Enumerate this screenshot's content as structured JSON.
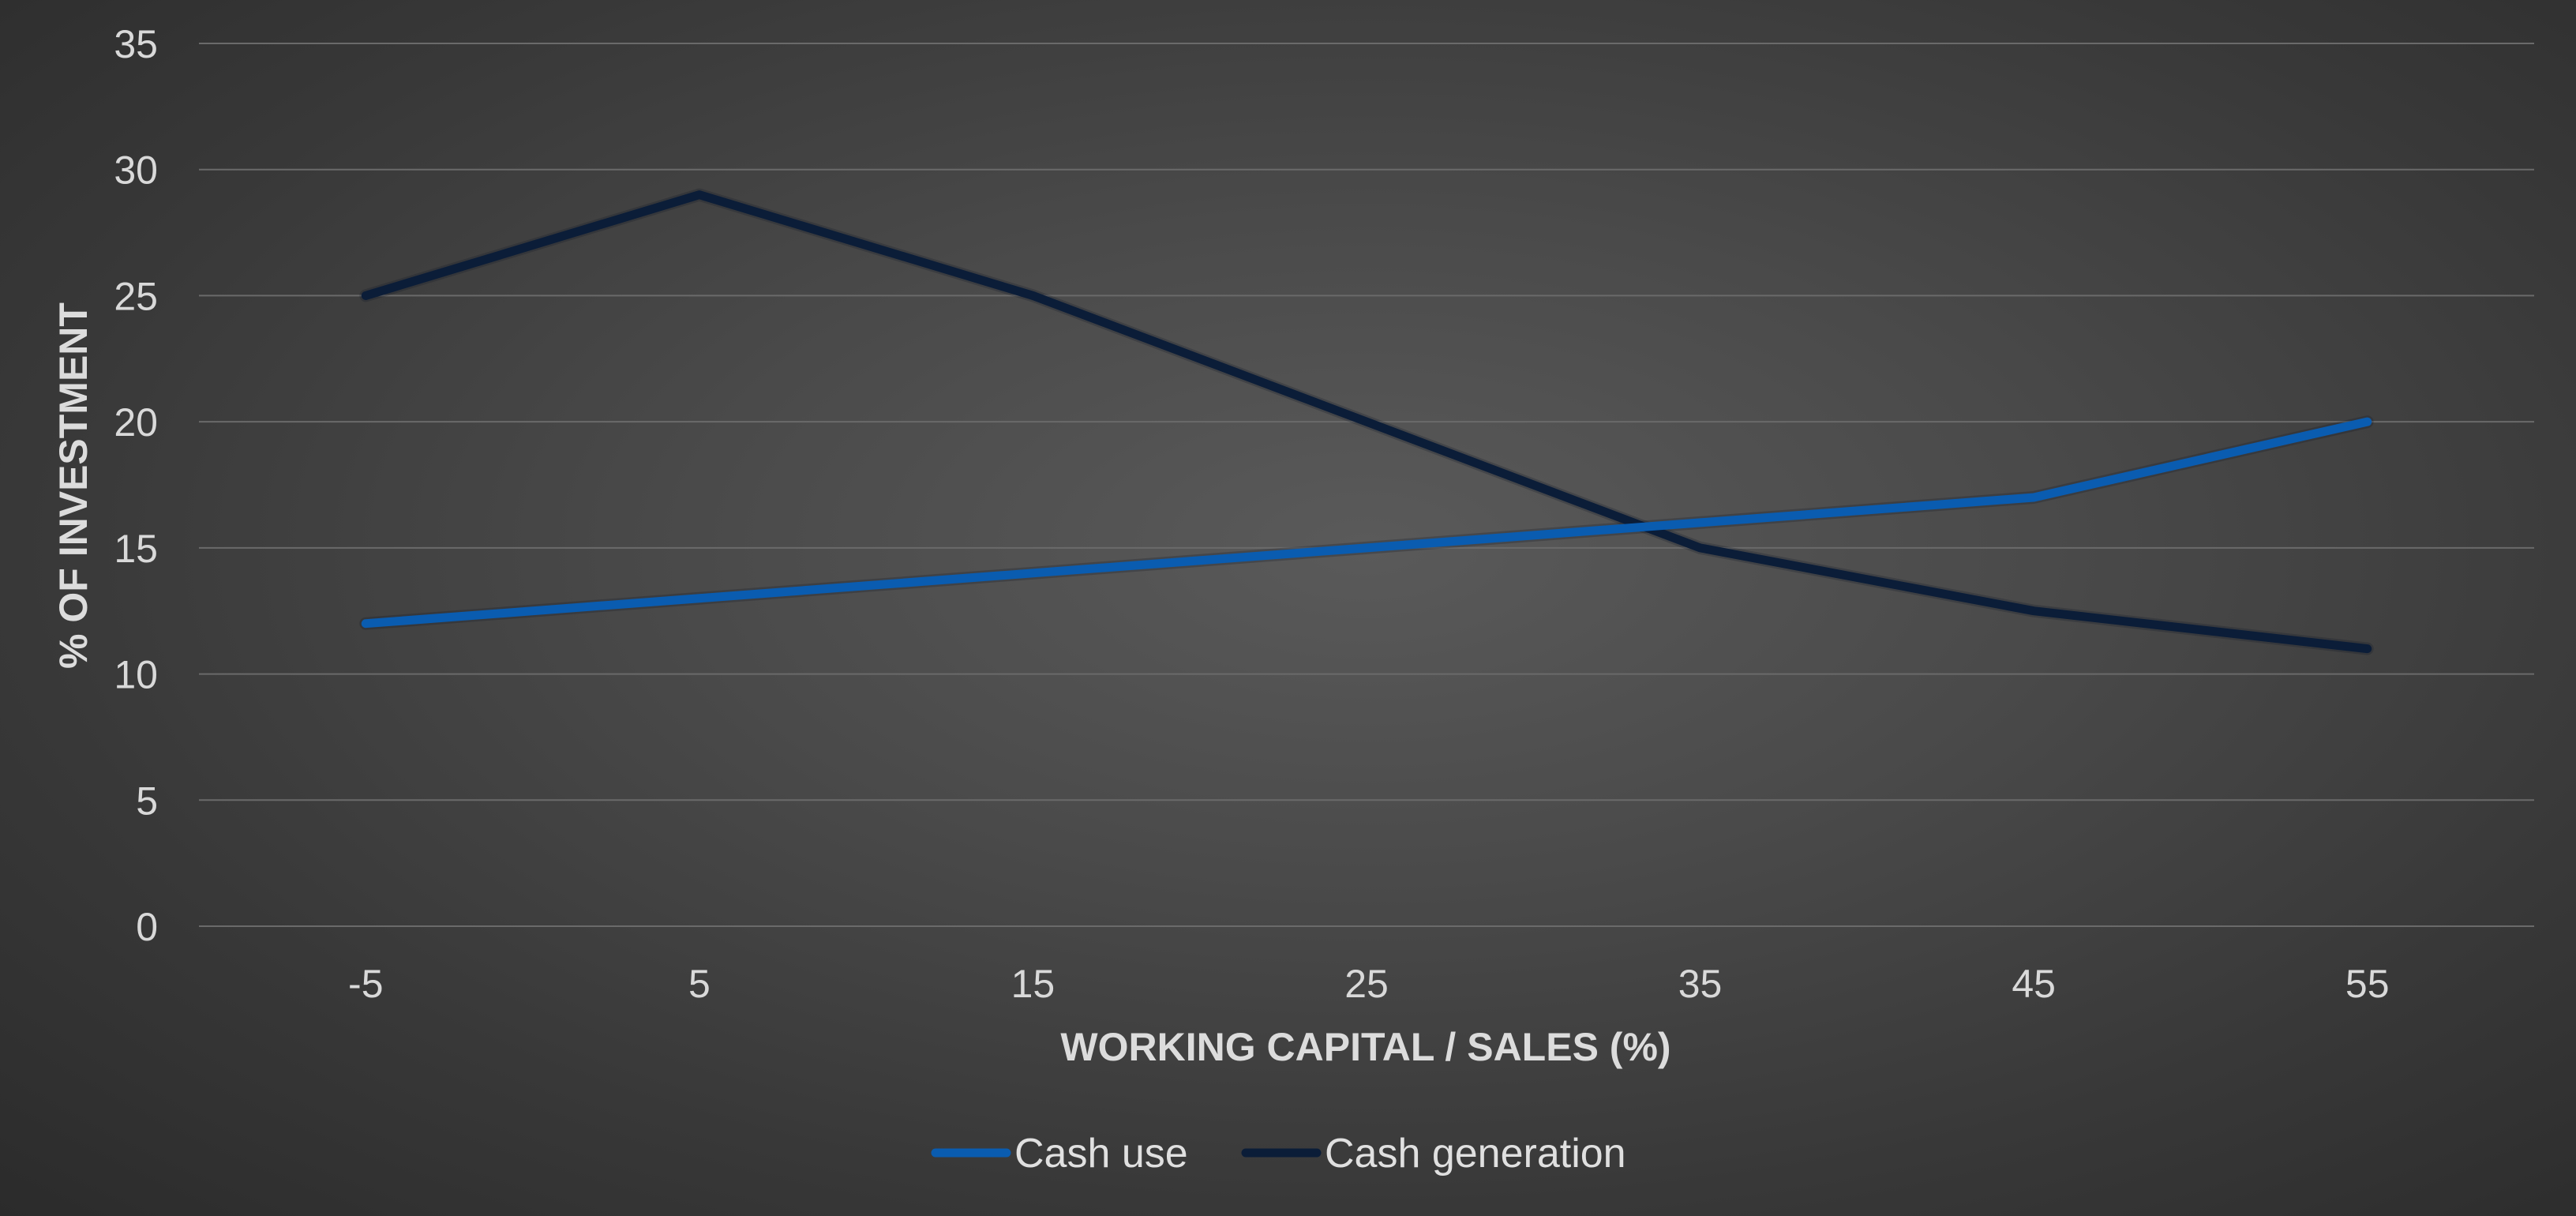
{
  "chart_data": {
    "type": "line",
    "title": "",
    "xlabel": "WORKING CAPITAL / SALES (%)",
    "ylabel": "% OF INVESTMENT",
    "categories": [
      "-5",
      "5",
      "15",
      "25",
      "35",
      "45",
      "55"
    ],
    "y_ticks": [
      "0",
      "5",
      "10",
      "15",
      "20",
      "25",
      "30",
      "35"
    ],
    "ylim": [
      0,
      35
    ],
    "grid": true,
    "legend_position": "bottom",
    "series": [
      {
        "name": "Cash use",
        "color": "#0a5cb0",
        "values": [
          12,
          13,
          14,
          15,
          16,
          17,
          20
        ]
      },
      {
        "name": "Cash generation",
        "color": "#0b1d38",
        "values": [
          25,
          29,
          25,
          20,
          15,
          12.5,
          11
        ]
      }
    ]
  }
}
